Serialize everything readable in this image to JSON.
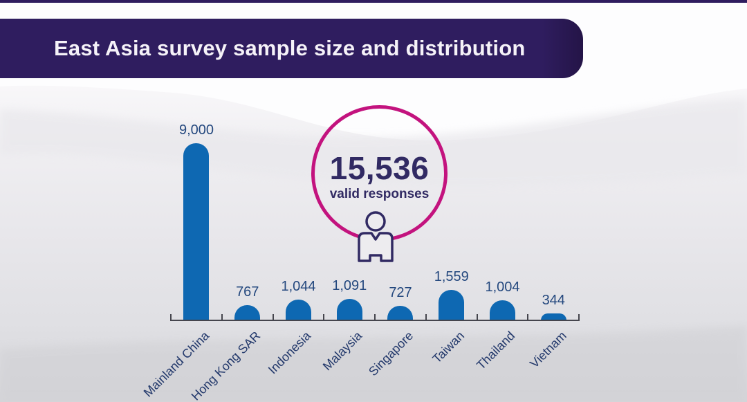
{
  "banner": {
    "title": "East Asia survey sample size and distribution"
  },
  "kpi": {
    "value": "15,536",
    "caption": "valid responses"
  },
  "chart_data": {
    "type": "bar",
    "title": "East Asia survey sample size and distribution",
    "categories": [
      "Mainland China",
      "Hong Kong SAR",
      "Indonesia",
      "Malaysia",
      "Singapore",
      "Taiwan",
      "Thailand",
      "Vietnam"
    ],
    "values": [
      9000,
      767,
      1044,
      1091,
      727,
      1559,
      1004,
      344
    ],
    "value_labels": [
      "9,000",
      "767",
      "1,044",
      "1,091",
      "727",
      "1,559",
      "1,004",
      "344"
    ],
    "annotation": "15,536 valid responses",
    "xlabel": "",
    "ylabel": "",
    "ylim": [
      0,
      9000
    ],
    "grid": false,
    "legend": false,
    "bar_color": "#0e68b2",
    "value_label_color": "#24487e",
    "category_label_color": "#22386b",
    "axis_color": "#45454d"
  },
  "colors": {
    "banner_bg": "#2f1d5f",
    "banner_text": "#f5f2f8",
    "accent_ring": "#c3137e",
    "kpi_text": "#312a63"
  }
}
